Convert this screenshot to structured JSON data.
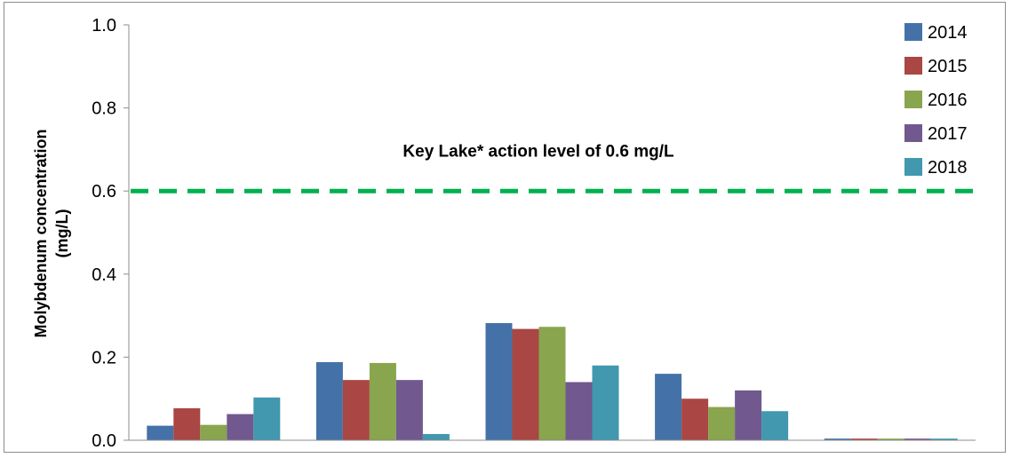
{
  "chart_data": {
    "type": "bar",
    "categories": [
      "",
      "",
      "",
      "",
      ""
    ],
    "series": [
      {
        "name": "2014",
        "color": "#4472A8",
        "values": [
          0.035,
          0.188,
          0.282,
          0.16,
          0.004
        ]
      },
      {
        "name": "2015",
        "color": "#AA4643",
        "values": [
          0.077,
          0.145,
          0.268,
          0.1,
          0.004
        ]
      },
      {
        "name": "2016",
        "color": "#89A54E",
        "values": [
          0.037,
          0.186,
          0.273,
          0.08,
          0.004
        ]
      },
      {
        "name": "2017",
        "color": "#71588F",
        "values": [
          0.063,
          0.145,
          0.14,
          0.12,
          0.004
        ]
      },
      {
        "name": "2018",
        "color": "#4198AF",
        "values": [
          0.103,
          0.015,
          0.18,
          0.07,
          0.004
        ]
      }
    ],
    "ylabel_lines": [
      "Molybdenum concentration",
      "(mg/L)"
    ],
    "ylim": [
      0,
      1.0
    ],
    "yticks": [
      "0.0",
      "0.2",
      "0.4",
      "0.6",
      "0.8",
      "1.0"
    ],
    "ytick_values": [
      0,
      0.2,
      0.4,
      0.6,
      0.8,
      1.0
    ],
    "grid": false,
    "legend_position": "top-right",
    "reference_line": {
      "value": 0.6,
      "color": "#00B050",
      "style": "dashed",
      "label": "Key Lake* action level of 0.6 mg/L"
    }
  }
}
